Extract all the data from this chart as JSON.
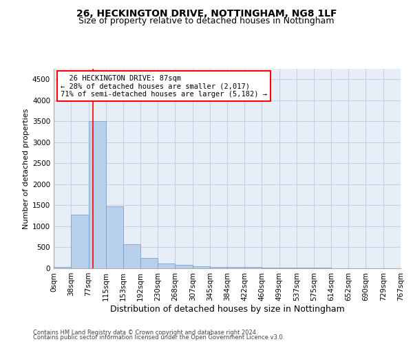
{
  "title1": "26, HECKINGTON DRIVE, NOTTINGHAM, NG8 1LF",
  "title2": "Size of property relative to detached houses in Nottingham",
  "xlabel": "Distribution of detached houses by size in Nottingham",
  "ylabel": "Number of detached properties",
  "footnote1": "Contains HM Land Registry data © Crown copyright and database right 2024.",
  "footnote2": "Contains public sector information licensed under the Open Government Licence v3.0.",
  "annotation_line1": "  26 HECKINGTON DRIVE: 87sqm",
  "annotation_line2": "← 28% of detached houses are smaller (2,017)",
  "annotation_line3": "71% of semi-detached houses are larger (5,182) →",
  "bar_color": "#b8d0ea",
  "bar_edge_color": "#6699cc",
  "red_line_x": 87,
  "bin_edges": [
    0,
    38,
    77,
    115,
    153,
    192,
    230,
    268,
    307,
    345,
    384,
    422,
    460,
    499,
    537,
    575,
    614,
    652,
    690,
    729,
    767
  ],
  "bin_counts": [
    40,
    1270,
    3500,
    1480,
    580,
    240,
    110,
    80,
    55,
    40,
    30,
    25,
    20,
    15,
    12,
    10,
    5,
    4,
    3,
    2
  ],
  "ylim": [
    0,
    4750
  ],
  "yticks": [
    0,
    500,
    1000,
    1500,
    2000,
    2500,
    3000,
    3500,
    4000,
    4500
  ],
  "background_color": "#e8eef8",
  "grid_color": "#c8d0e0",
  "title_fontsize": 10,
  "subtitle_fontsize": 9,
  "ylabel_fontsize": 8,
  "xlabel_fontsize": 9,
  "tick_fontsize": 7.5,
  "footnote_fontsize": 6,
  "annot_fontsize": 7.5
}
